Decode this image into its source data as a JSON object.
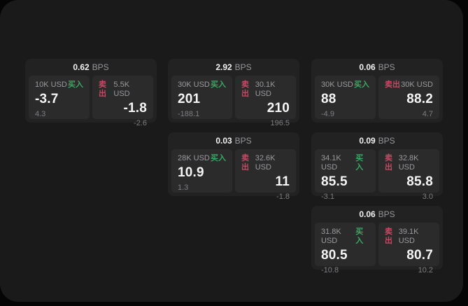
{
  "colors": {
    "buy_green": "#3aa763",
    "sell_red": "#c44a63",
    "panel_bg": "#1a1a1b",
    "card_bg": "#222223",
    "cell_bg": "#2b2b2c"
  },
  "labels": {
    "buy": "买入",
    "sell": "卖出",
    "bps_unit": "BPS"
  },
  "cards": [
    {
      "bps": "0.62",
      "buy": {
        "size": "10K USD",
        "price": "-3.7",
        "delta": "4.3"
      },
      "sell": {
        "size": "5.5K USD",
        "price": "-1.8",
        "delta": "-2.6"
      }
    },
    {
      "bps": "2.92",
      "buy": {
        "size": "30K USD",
        "price": "201",
        "delta": "-188.1"
      },
      "sell": {
        "size": "30.1K USD",
        "price": "210",
        "delta": "196.5"
      }
    },
    {
      "bps": "0.06",
      "buy": {
        "size": "30K USD",
        "price": "88",
        "delta": "-4.9"
      },
      "sell": {
        "size": "30K USD",
        "price": "88.2",
        "delta": "4.7"
      }
    },
    {
      "bps": "0.03",
      "buy": {
        "size": "28K USD",
        "price": "10.9",
        "delta": "1.3"
      },
      "sell": {
        "size": "32.6K USD",
        "price": "11",
        "delta": "-1.8"
      }
    },
    {
      "bps": "0.09",
      "buy": {
        "size": "34.1K USD",
        "price": "85.5",
        "delta": "-3.1"
      },
      "sell": {
        "size": "32.8K USD",
        "price": "85.8",
        "delta": "3.0"
      }
    },
    {
      "bps": "0.06",
      "buy": {
        "size": "31.8K USD",
        "price": "80.5",
        "delta": "-10.8"
      },
      "sell": {
        "size": "39.1K USD",
        "price": "80.7",
        "delta": "10.2"
      }
    }
  ]
}
